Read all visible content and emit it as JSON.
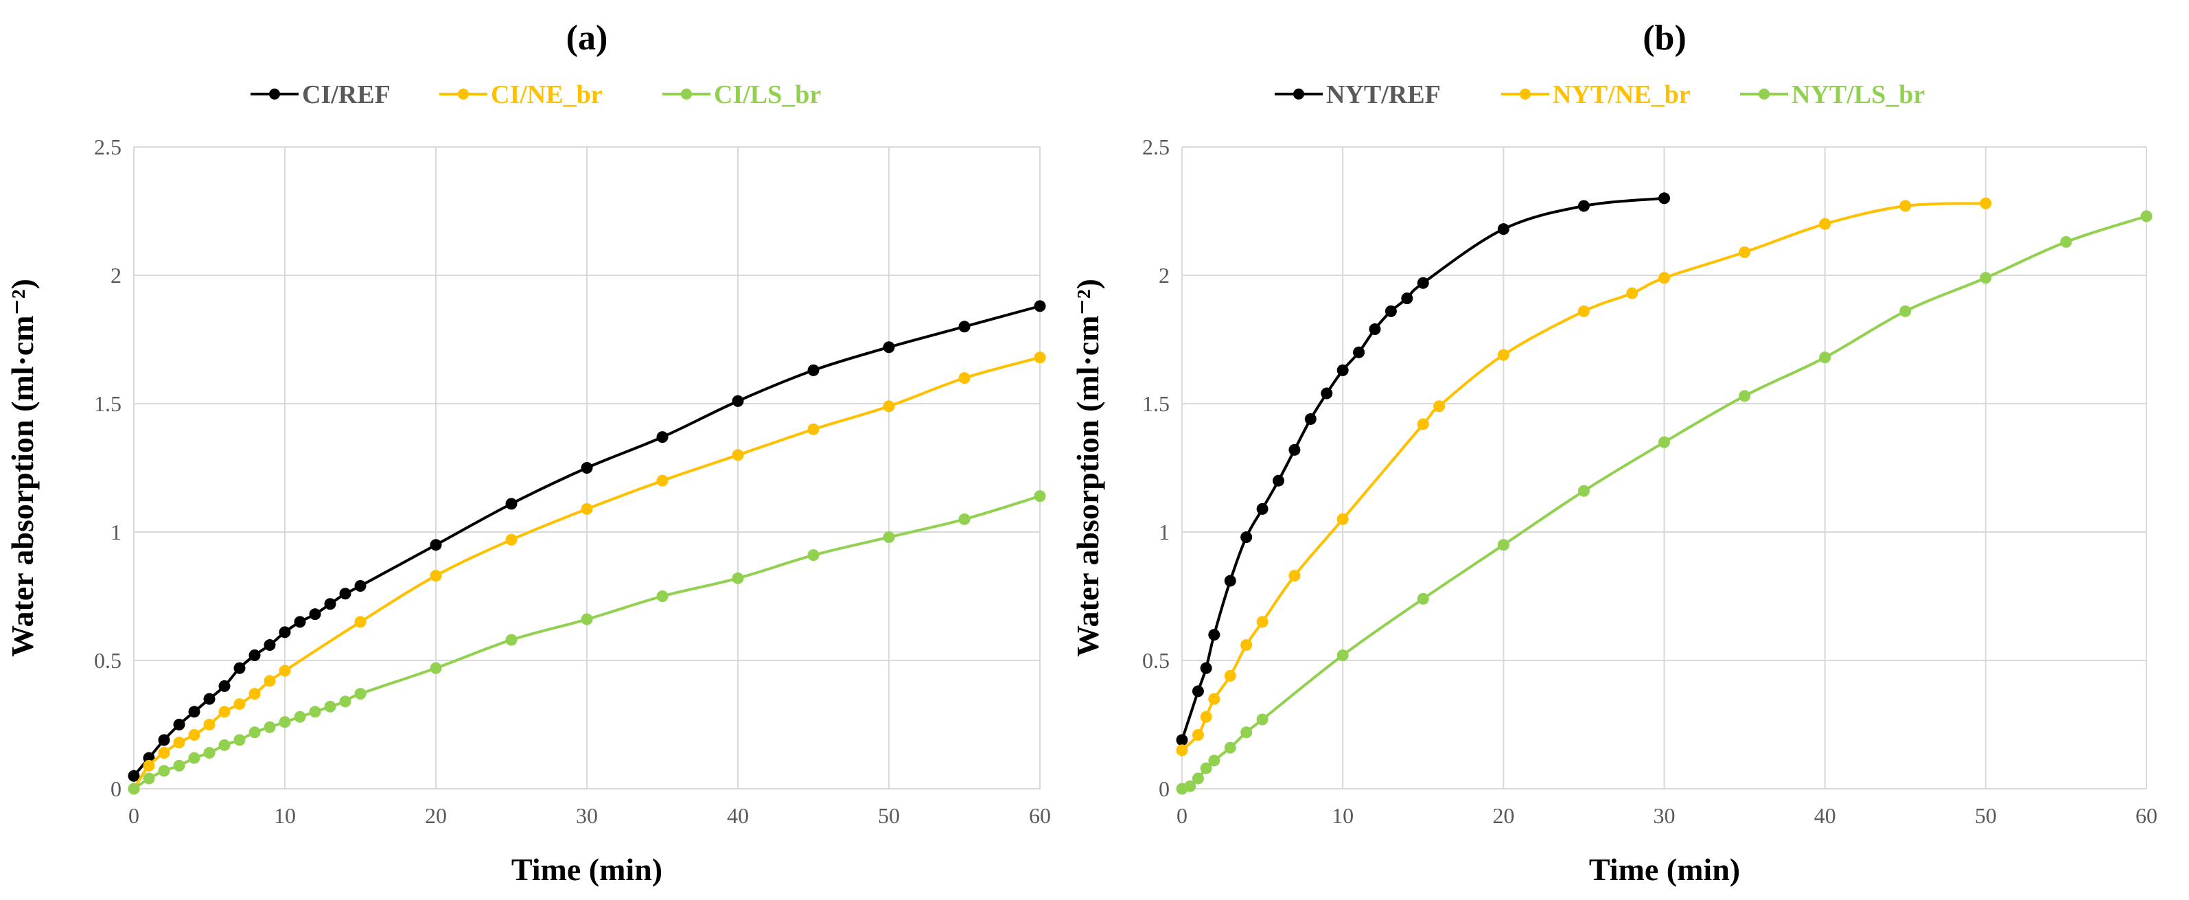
{
  "chart_data": [
    {
      "type": "line",
      "panel_label": "(a)",
      "xlabel": "Time (min)",
      "ylabel": "Water absorption (ml·cm⁻²)",
      "xlim": [
        0,
        60
      ],
      "ylim": [
        0,
        2.5
      ],
      "xticks": [
        0,
        10,
        20,
        30,
        40,
        50,
        60
      ],
      "yticks": [
        0,
        0.5,
        1,
        1.5,
        2,
        2.5
      ],
      "xtick_labels": [
        "0",
        "10",
        "20",
        "30",
        "40",
        "50",
        "60"
      ],
      "ytick_labels": [
        "0",
        "0.5",
        "1",
        "1.5",
        "2",
        "2.5"
      ],
      "grid": true,
      "legend_position": "top-center",
      "series": [
        {
          "name": "CI/REF",
          "color": "#000000",
          "x": [
            0,
            1,
            2,
            3,
            4,
            5,
            6,
            7,
            8,
            9,
            10,
            11,
            12,
            13,
            14,
            15,
            20,
            25,
            30,
            35,
            40,
            45,
            50,
            55,
            60
          ],
          "values": [
            0.05,
            0.12,
            0.19,
            0.25,
            0.3,
            0.35,
            0.4,
            0.47,
            0.52,
            0.56,
            0.61,
            0.65,
            0.68,
            0.72,
            0.76,
            0.79,
            0.95,
            1.11,
            1.25,
            1.37,
            1.51,
            1.63,
            1.72,
            1.8,
            1.88
          ]
        },
        {
          "name": "CI/NE_br",
          "color": "#FFC000",
          "x": [
            0,
            1,
            2,
            3,
            4,
            5,
            6,
            7,
            8,
            9,
            10,
            15,
            20,
            25,
            30,
            35,
            40,
            45,
            50,
            55,
            60
          ],
          "values": [
            0.0,
            0.09,
            0.14,
            0.18,
            0.21,
            0.25,
            0.3,
            0.33,
            0.37,
            0.42,
            0.46,
            0.65,
            0.83,
            0.97,
            1.09,
            1.2,
            1.3,
            1.4,
            1.49,
            1.6,
            1.68
          ]
        },
        {
          "name": "CI/LS_br",
          "color": "#92D050",
          "x": [
            0,
            1,
            2,
            3,
            4,
            5,
            6,
            7,
            8,
            9,
            10,
            11,
            12,
            13,
            14,
            15,
            20,
            25,
            30,
            35,
            40,
            45,
            50,
            55,
            60
          ],
          "values": [
            0.0,
            0.04,
            0.07,
            0.09,
            0.12,
            0.14,
            0.17,
            0.19,
            0.22,
            0.24,
            0.26,
            0.28,
            0.3,
            0.32,
            0.34,
            0.37,
            0.47,
            0.58,
            0.66,
            0.75,
            0.82,
            0.91,
            0.98,
            1.05,
            1.14
          ]
        }
      ]
    },
    {
      "type": "line",
      "panel_label": "(b)",
      "xlabel": "Time (min)",
      "ylabel": "Water absorption (ml·cm⁻²)",
      "xlim": [
        0,
        60
      ],
      "ylim": [
        0,
        2.5
      ],
      "xticks": [
        0,
        10,
        20,
        30,
        40,
        50,
        60
      ],
      "yticks": [
        0,
        0.5,
        1,
        1.5,
        2,
        2.5
      ],
      "xtick_labels": [
        "0",
        "10",
        "20",
        "30",
        "40",
        "50",
        "60"
      ],
      "ytick_labels": [
        "0",
        "0.5",
        "1",
        "1.5",
        "2",
        "2.5"
      ],
      "grid": true,
      "legend_position": "top-center",
      "series": [
        {
          "name": "NYT/REF",
          "color": "#000000",
          "x": [
            0,
            1,
            1.5,
            2,
            3,
            4,
            5,
            6,
            7,
            8,
            9,
            10,
            11,
            12,
            13,
            14,
            15,
            20,
            25,
            30
          ],
          "values": [
            0.19,
            0.38,
            0.47,
            0.6,
            0.81,
            0.98,
            1.09,
            1.2,
            1.32,
            1.44,
            1.54,
            1.63,
            1.7,
            1.79,
            1.86,
            1.91,
            1.97,
            2.18,
            2.27,
            2.3
          ]
        },
        {
          "name": "NYT/NE_br",
          "color": "#FFC000",
          "x": [
            0,
            1,
            1.5,
            2,
            3,
            4,
            5,
            7,
            10,
            15,
            16,
            20,
            25,
            28,
            30,
            35,
            40,
            45,
            50
          ],
          "values": [
            0.15,
            0.21,
            0.28,
            0.35,
            0.44,
            0.56,
            0.65,
            0.83,
            1.05,
            1.42,
            1.49,
            1.69,
            1.86,
            1.93,
            1.99,
            2.09,
            2.2,
            2.27,
            2.28
          ]
        },
        {
          "name": "NYT/LS_br",
          "color": "#92D050",
          "x": [
            0,
            0.5,
            1,
            1.5,
            2,
            3,
            4,
            5,
            10,
            15,
            20,
            25,
            30,
            35,
            40,
            45,
            50,
            55,
            60
          ],
          "values": [
            0.0,
            0.01,
            0.04,
            0.08,
            0.11,
            0.16,
            0.22,
            0.27,
            0.52,
            0.74,
            0.95,
            1.16,
            1.35,
            1.53,
            1.68,
            1.86,
            1.99,
            2.13,
            2.23
          ]
        }
      ]
    }
  ]
}
